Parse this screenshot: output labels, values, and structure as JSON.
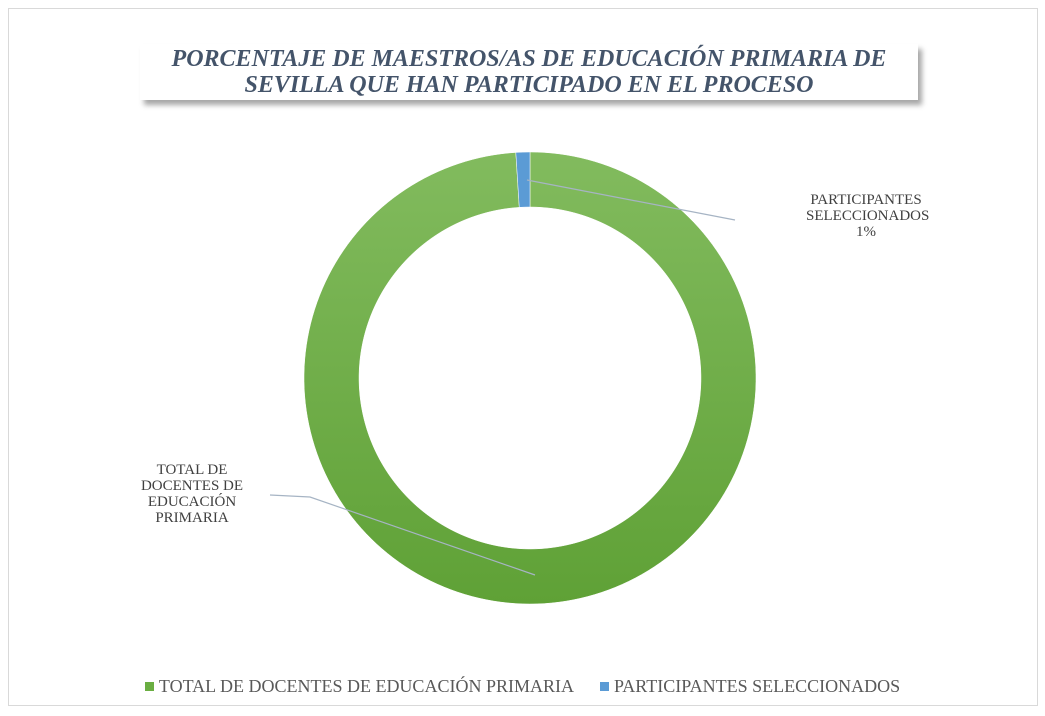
{
  "chart_data": {
    "type": "donut",
    "title": "PORCENTAJE DE MAESTROS/AS DE EDUCACIÓN PRIMARIA DE SEVILLA QUE HAN PARTICIPADO EN EL PROCESO",
    "categories": [
      "TOTAL DE DOCENTES DE EDUCACIÓN PRIMARIA",
      "PARTICIPANTES SELECCIONADOS"
    ],
    "values": [
      99,
      1
    ],
    "value_labels": [
      null,
      "1%"
    ],
    "colors": [
      "#6aae42",
      "#5b9bd5"
    ],
    "legend": "bottom"
  }
}
